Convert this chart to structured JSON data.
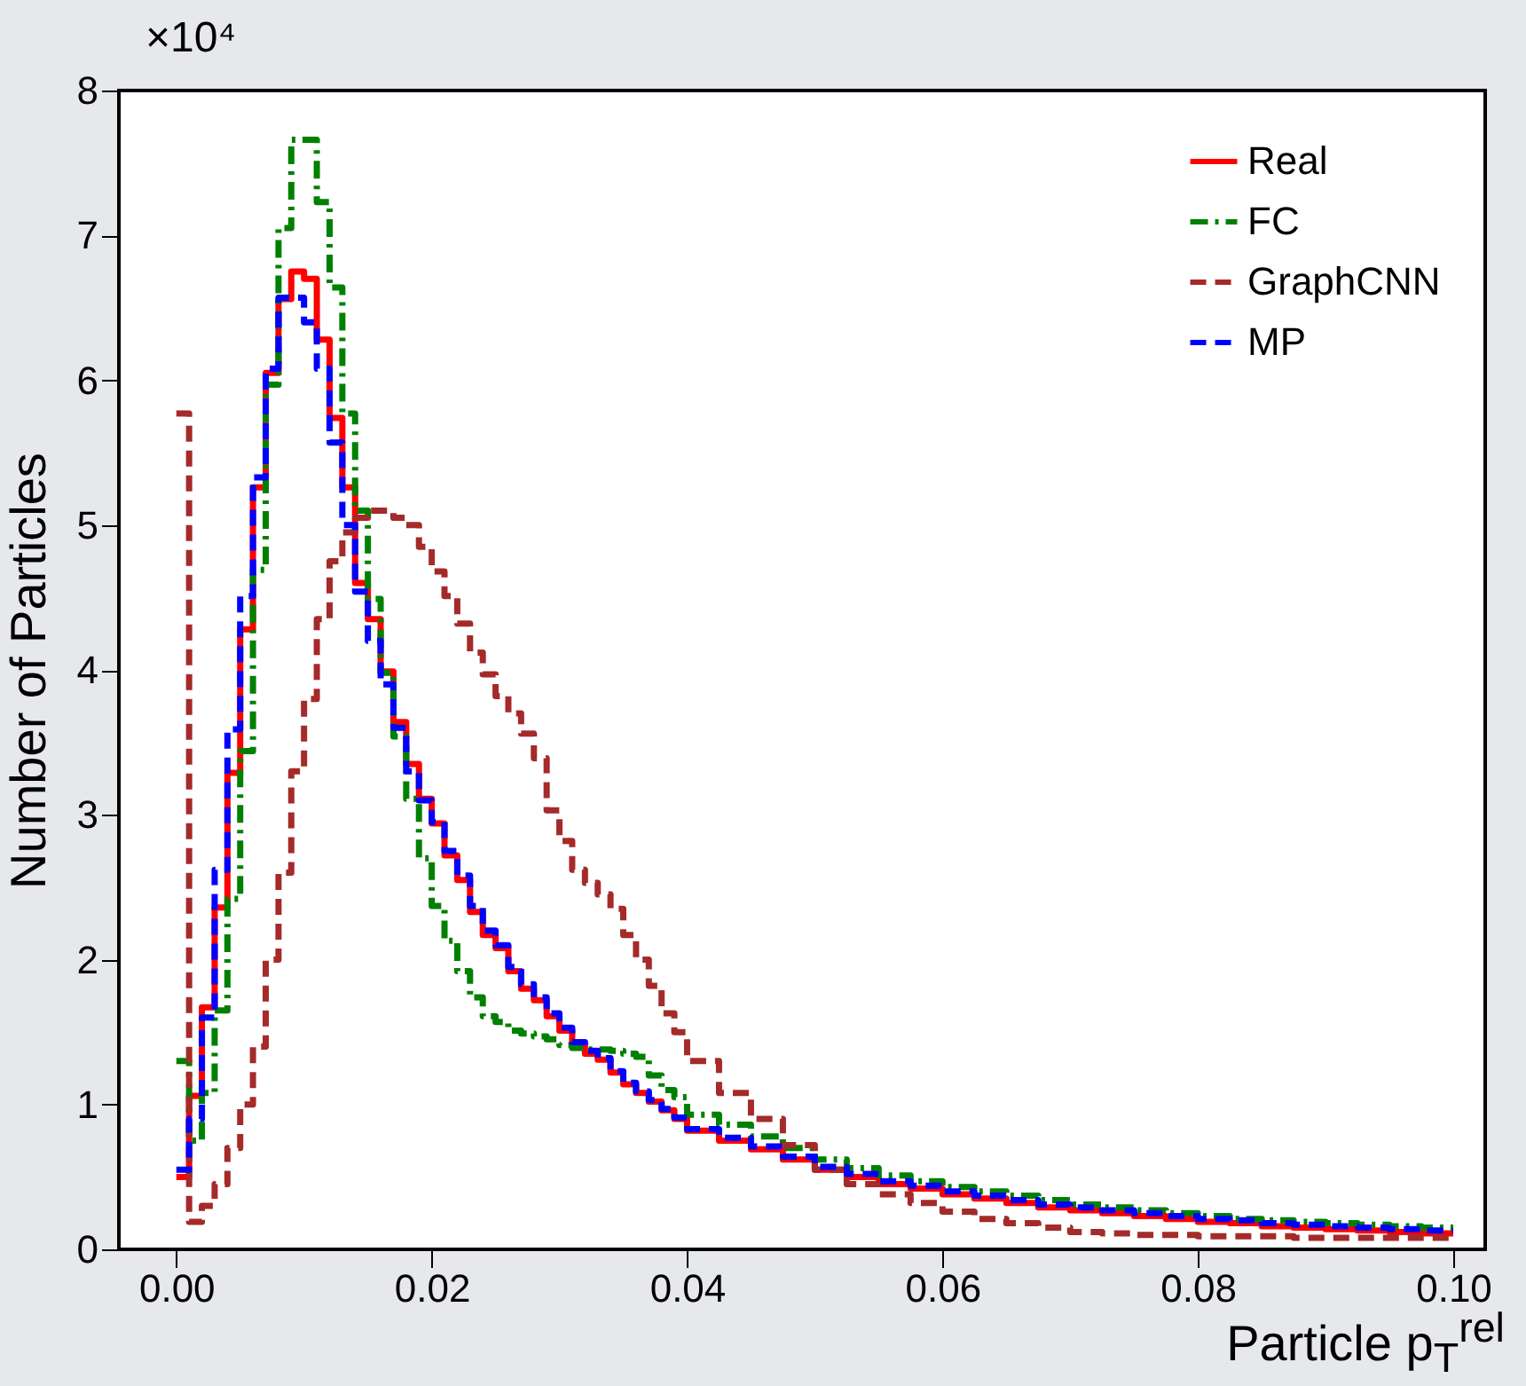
{
  "chart_data": {
    "type": "histogram",
    "xlabel": "Particle p$_{T}$$^{rel}$",
    "ylabel": "Number of Particles",
    "annotations": [
      "×10⁴"
    ],
    "bins": [
      0,
      0.001,
      0.002,
      0.003,
      0.004,
      0.005,
      0.006,
      0.007,
      0.008,
      0.009,
      0.01,
      0.011,
      0.012,
      0.013,
      0.014,
      0.015,
      0.016,
      0.017,
      0.018,
      0.019,
      0.02,
      0.021,
      0.022,
      0.023,
      0.024,
      0.025,
      0.026,
      0.027,
      0.028,
      0.029,
      0.03,
      0.031,
      0.032,
      0.033,
      0.034,
      0.035,
      0.036,
      0.037,
      0.038,
      0.039,
      0.04,
      0.0425,
      0.045,
      0.0475,
      0.05,
      0.0525,
      0.055,
      0.0575,
      0.06,
      0.0625,
      0.065,
      0.0675,
      0.07,
      0.0725,
      0.075,
      0.0775,
      0.08,
      0.0825,
      0.085,
      0.0875,
      0.09,
      0.0925,
      0.095,
      0.0975,
      0.1
    ],
    "series": [
      {
        "name": "Real",
        "color": "#ff0000",
        "line_style": "solid",
        "values": [
          0.5,
          1.06,
          1.67,
          2.36,
          3.29,
          4.28,
          5.26,
          6.05,
          6.56,
          6.75,
          6.7,
          6.28,
          5.74,
          5.26,
          4.6,
          4.35,
          3.99,
          3.64,
          3.35,
          3.11,
          2.94,
          2.72,
          2.55,
          2.33,
          2.17,
          2.08,
          1.92,
          1.8,
          1.72,
          1.61,
          1.51,
          1.41,
          1.35,
          1.31,
          1.22,
          1.14,
          1.08,
          1.02,
          0.96,
          0.9,
          0.82,
          0.75,
          0.69,
          0.62,
          0.55,
          0.5,
          0.45,
          0.42,
          0.38,
          0.35,
          0.32,
          0.29,
          0.27,
          0.25,
          0.23,
          0.21,
          0.19,
          0.18,
          0.16,
          0.15,
          0.14,
          0.13,
          0.12,
          0.11
        ]
      },
      {
        "name": "FC",
        "color": "#008000",
        "line_style": "dashdot",
        "values": [
          1.3,
          0.75,
          1.08,
          1.65,
          2.42,
          3.44,
          4.69,
          5.97,
          7.05,
          7.66,
          7.66,
          7.23,
          6.64,
          5.77,
          5.1,
          4.49,
          3.98,
          3.54,
          3.11,
          2.7,
          2.37,
          2.13,
          1.92,
          1.74,
          1.61,
          1.57,
          1.51,
          1.49,
          1.47,
          1.45,
          1.41,
          1.39,
          1.38,
          1.38,
          1.37,
          1.35,
          1.33,
          1.2,
          1.1,
          1.05,
          0.93,
          0.86,
          0.78,
          0.7,
          0.62,
          0.56,
          0.51,
          0.47,
          0.43,
          0.4,
          0.37,
          0.34,
          0.31,
          0.29,
          0.27,
          0.25,
          0.23,
          0.21,
          0.2,
          0.19,
          0.18,
          0.17,
          0.16,
          0.15
        ]
      },
      {
        "name": "GraphCNN",
        "color": "#a52a2a",
        "line_style": "dashed",
        "values": [
          5.77,
          0.19,
          0.3,
          0.45,
          0.7,
          1.0,
          1.4,
          2.0,
          2.6,
          3.3,
          3.8,
          4.35,
          4.75,
          4.95,
          5.05,
          5.1,
          5.1,
          5.05,
          5.0,
          4.85,
          4.68,
          4.51,
          4.32,
          4.12,
          3.97,
          3.82,
          3.7,
          3.56,
          3.39,
          3.03,
          2.82,
          2.62,
          2.53,
          2.45,
          2.35,
          2.17,
          2.0,
          1.82,
          1.63,
          1.5,
          1.3,
          1.08,
          0.9,
          0.72,
          0.55,
          0.45,
          0.38,
          0.32,
          0.26,
          0.21,
          0.18,
          0.15,
          0.12,
          0.11,
          0.1,
          0.1,
          0.09,
          0.09,
          0.09,
          0.08,
          0.08,
          0.08,
          0.08,
          0.08
        ]
      },
      {
        "name": "MP",
        "color": "#0000ff",
        "line_style": "dashed",
        "values": [
          0.55,
          0.9,
          1.6,
          2.62,
          3.59,
          4.51,
          5.33,
          6.08,
          6.57,
          6.57,
          6.4,
          6.08,
          5.57,
          5.0,
          4.54,
          4.2,
          3.9,
          3.6,
          3.3,
          3.1,
          2.95,
          2.75,
          2.58,
          2.37,
          2.2,
          2.1,
          1.95,
          1.83,
          1.74,
          1.63,
          1.53,
          1.43,
          1.37,
          1.32,
          1.23,
          1.15,
          1.09,
          1.03,
          0.97,
          0.91,
          0.83,
          0.77,
          0.71,
          0.64,
          0.57,
          0.52,
          0.47,
          0.44,
          0.4,
          0.37,
          0.34,
          0.31,
          0.29,
          0.27,
          0.25,
          0.23,
          0.21,
          0.2,
          0.18,
          0.17,
          0.16,
          0.15,
          0.14,
          0.13
        ]
      }
    ],
    "xlim": [
      -0.0045,
      0.1025
    ],
    "xticks": [
      {
        "value": 0,
        "label": "0.00"
      },
      {
        "value": 0.02,
        "label": "0.02"
      },
      {
        "value": 0.04,
        "label": "0.04"
      },
      {
        "value": 0.06,
        "label": "0.06"
      },
      {
        "value": 0.08,
        "label": "0.08"
      },
      {
        "value": 0.1,
        "label": "0.10"
      }
    ],
    "ylim": [
      0,
      8
    ],
    "yticks": [
      0,
      1,
      2,
      3,
      4,
      5,
      6,
      7,
      8
    ],
    "grid": false,
    "legend": "top right"
  }
}
